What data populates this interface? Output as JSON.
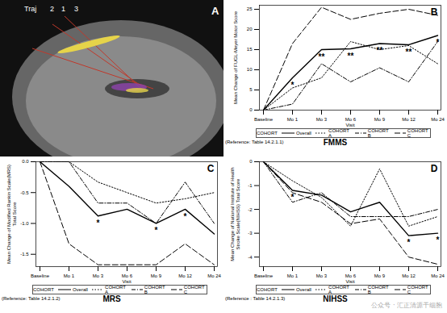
{
  "panel_a": {
    "label": "A",
    "texts": [
      "Traj",
      "2",
      "1",
      "3"
    ]
  },
  "watermark": "公众号 · 汇正清源干细胞",
  "chart_data": [
    {
      "type": "line",
      "panel": "B",
      "title": "FMMS",
      "x_label": "Visit",
      "y_label": "Mean Change of FUGL-Meyer Motor Score",
      "reference": "(Reference: Table 14.2.1.1)",
      "categories": [
        "Baseline",
        "Mo 1",
        "Mo 3",
        "Mo 6",
        "Mo 9",
        "Mo 12",
        "Mo 24"
      ],
      "ylim": [
        0,
        26
      ],
      "yticks": [
        0,
        5,
        10,
        15,
        20,
        25
      ],
      "legend": "bottom",
      "legend_title": "COHORT",
      "series": [
        {
          "name": "Overall",
          "color": "#000000",
          "line_style": "solid",
          "values": [
            0,
            8,
            15,
            15.2,
            16.5,
            16.2,
            18.5
          ]
        },
        {
          "name": "COHORT A",
          "color": "#000000",
          "line_style": "dotted",
          "values": [
            0,
            5.5,
            8,
            17,
            15,
            16,
            11.5
          ]
        },
        {
          "name": "COHORT B",
          "color": "#000000",
          "line_style": "dashdot",
          "values": [
            0,
            1.5,
            11.5,
            7,
            10.5,
            7,
            17
          ]
        },
        {
          "name": "COHORT C",
          "color": "#000000",
          "line_style": "dashed",
          "values": [
            0,
            16.5,
            25.5,
            22.5,
            24,
            25,
            23.5
          ]
        }
      ],
      "annotations": [
        {
          "x": "Mo 1",
          "text": "*"
        },
        {
          "x": "Mo 3",
          "text": "**"
        },
        {
          "x": "Mo 6",
          "text": "**"
        },
        {
          "x": "Mo 9",
          "text": "**"
        },
        {
          "x": "Mo 12",
          "text": "**"
        },
        {
          "x": "Mo 24",
          "text": "*"
        }
      ]
    },
    {
      "type": "line",
      "panel": "C",
      "title": "MRS",
      "x_label": "Visit",
      "y_label": "Mean Change of Modified Rankin Scale(MRS) Total Score",
      "reference": "(Reference: Table 14.2.1.2)",
      "categories": [
        "Baseline",
        "Mo 1",
        "Mo 3",
        "Mo 6",
        "Mo 9",
        "Mo 12",
        "Mo 24"
      ],
      "ylim": [
        -1.7,
        0
      ],
      "yticks": [
        {
          "value": 0,
          "label": "0.0"
        },
        -0.5,
        {
          "value": -1,
          "label": "-1.0"
        },
        -1.5
      ],
      "legend": "bottom",
      "legend_title": "COHORT",
      "series": [
        {
          "name": "Overall",
          "color": "#000000",
          "line_style": "solid",
          "values": [
            0,
            -0.4,
            -0.88,
            -0.77,
            -1.0,
            -0.77,
            -1.17
          ]
        },
        {
          "name": "COHORT A",
          "color": "#000000",
          "line_style": "dotted",
          "values": [
            0,
            0,
            -0.33,
            -0.5,
            -0.67,
            -0.6,
            -0.5
          ]
        },
        {
          "name": "COHORT B",
          "color": "#000000",
          "line_style": "dashdot",
          "values": [
            0,
            0,
            -0.67,
            -0.67,
            -1.0,
            -0.33,
            -1.0
          ]
        },
        {
          "name": "COHORT C",
          "color": "#000000",
          "line_style": "dashed",
          "values": [
            0,
            -1.33,
            -1.67,
            -1.67,
            -1.67,
            -1.33,
            -1.67
          ]
        }
      ],
      "annotations": [
        {
          "x": "Mo 3",
          "text": "*"
        },
        {
          "x": "Mo 9",
          "text": "*"
        },
        {
          "x": "Mo 12",
          "text": "*"
        }
      ]
    },
    {
      "type": "line",
      "panel": "D",
      "title": "NIHSS",
      "x_label": "Visit",
      "y_label": "Mean Change of National Institute of Health Stroke Scale(NIHSS) Total Score",
      "reference": "(Reference : Table 14.2.1.3)",
      "categories": [
        "Baseline",
        "Mo 1",
        "Mo 3",
        "Mo 6",
        "Mo 9",
        "Mo 12",
        "Mo 24"
      ],
      "ylim": [
        -4.4,
        0
      ],
      "yticks": [
        0,
        -1,
        -2,
        -3,
        -4
      ],
      "legend": "bottom",
      "legend_title": "COHORT",
      "series": [
        {
          "name": "Overall",
          "color": "#000000",
          "line_style": "solid",
          "values": [
            0,
            -1.2,
            -1.4,
            -2.1,
            -1.7,
            -3.1,
            -3.0
          ]
        },
        {
          "name": "COHORT A",
          "color": "#000000",
          "line_style": "dotted",
          "values": [
            0,
            -0.8,
            -1.5,
            -2.7,
            -0.3,
            -2.7,
            -2.3
          ]
        },
        {
          "name": "COHORT B",
          "color": "#000000",
          "line_style": "dashdot",
          "values": [
            0,
            -1.7,
            -1.3,
            -2.3,
            -2.3,
            -2.3,
            -2.0
          ]
        },
        {
          "name": "COHORT C",
          "color": "#000000",
          "line_style": "dashed",
          "values": [
            0,
            -1.3,
            -1.7,
            -2.6,
            -2.4,
            -4.0,
            -4.3
          ]
        }
      ],
      "annotations": [
        {
          "x": "Mo 1",
          "text": "*"
        },
        {
          "x": "Mo 12",
          "text": "*"
        },
        {
          "x": "Mo 24",
          "text": "*"
        }
      ]
    }
  ]
}
